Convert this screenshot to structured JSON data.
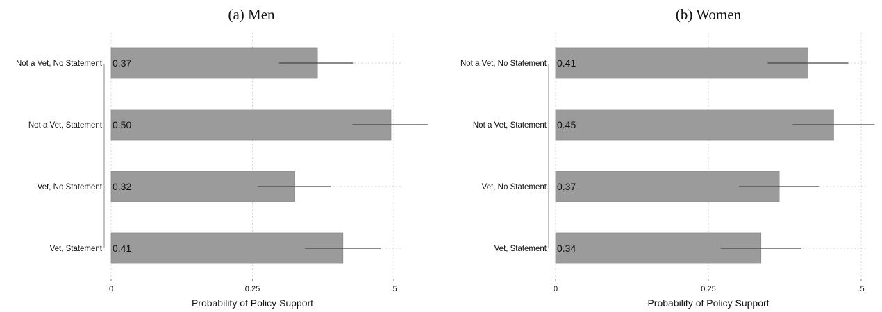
{
  "chart_data": [
    {
      "type": "bar",
      "orientation": "horizontal",
      "title": "(a) Men",
      "xlabel": "Probability of Policy Support",
      "ylabel": "",
      "xlim": [
        0,
        0.5
      ],
      "xticks": [
        0,
        0.25,
        0.5
      ],
      "xtick_labels": [
        "0",
        "0.25",
        ".5"
      ],
      "grid": true,
      "bar_color": "#9b9b9b",
      "categories": [
        "Not a Vet, No Statement",
        "Not a Vet, Statement",
        "Vet, No Statement",
        "Vet, Statement"
      ],
      "values": [
        0.365,
        0.495,
        0.325,
        0.41
      ],
      "value_labels": [
        "0.37",
        "0.50",
        "0.32",
        "0.41"
      ],
      "ci_low": [
        0.297,
        0.427,
        0.259,
        0.343
      ],
      "ci_high": [
        0.429,
        0.56,
        0.389,
        0.477
      ]
    },
    {
      "type": "bar",
      "orientation": "horizontal",
      "title": "(b) Women",
      "xlabel": "Probability of Policy Support",
      "ylabel": "",
      "xlim": [
        0,
        0.5
      ],
      "xticks": [
        0,
        0.25,
        0.5
      ],
      "xtick_labels": [
        "0",
        "0.25",
        ".5"
      ],
      "grid": true,
      "bar_color": "#9b9b9b",
      "categories": [
        "Not a Vet, No Statement",
        "Not a Vet, Statement",
        "Vet, No Statement",
        "Vet, Statement"
      ],
      "values": [
        0.413,
        0.455,
        0.366,
        0.336
      ],
      "value_labels": [
        "0.41",
        "0.45",
        "0.37",
        "0.34"
      ],
      "ci_low": [
        0.347,
        0.388,
        0.3,
        0.27
      ],
      "ci_high": [
        0.479,
        0.522,
        0.432,
        0.402
      ]
    }
  ]
}
